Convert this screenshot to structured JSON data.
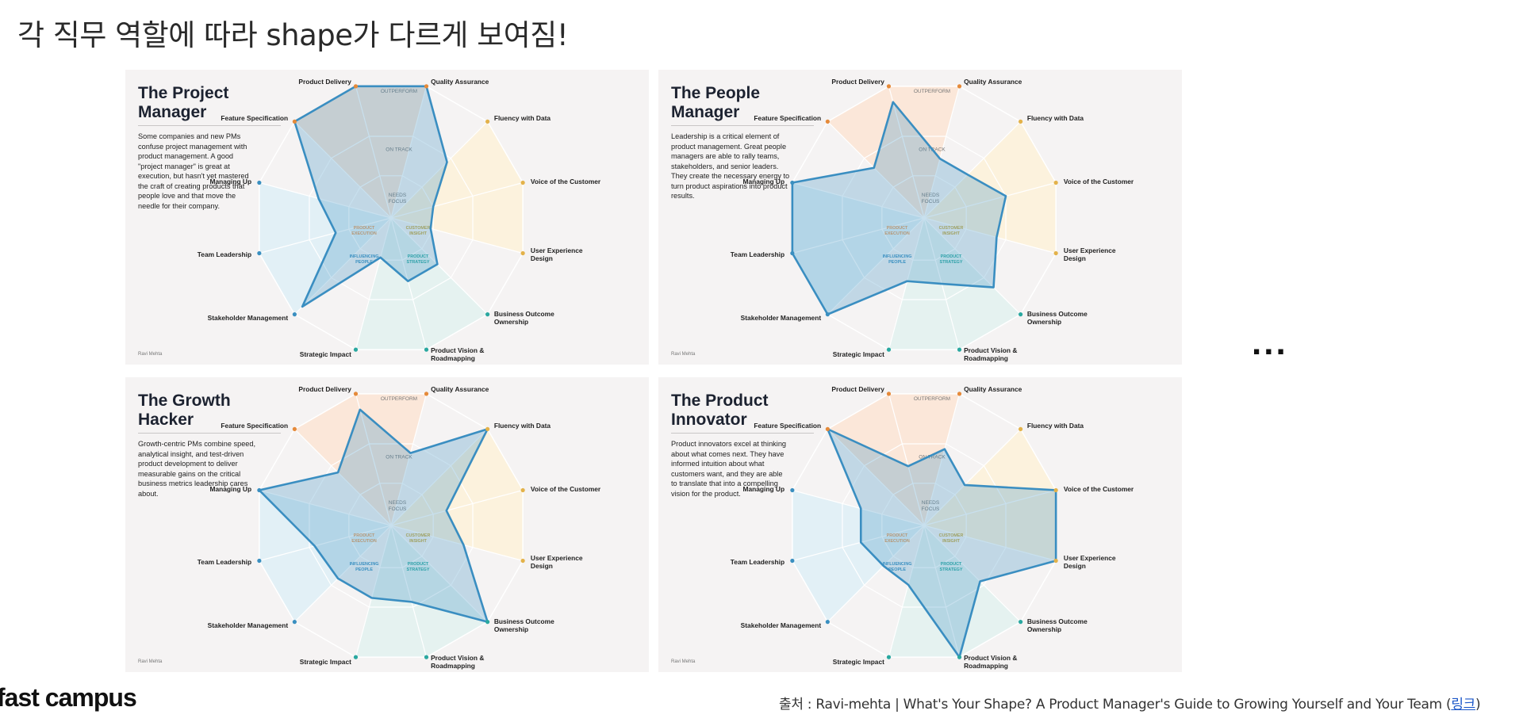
{
  "heading": "각 직무 역할에 따라 shape가 다르게 보여짐!",
  "ring_labels": [
    "OUTPERFORM",
    "ON TRACK",
    "NEEDS",
    "FOCUS"
  ],
  "zone_labels": [
    "PRODUCT",
    "EXECUTION",
    "CUSTOMER",
    "INSIGHT",
    "INFLUENCING",
    "PEOPLE",
    "PRODUCT",
    "STRATEGY"
  ],
  "zone_colors": {
    "execution": "#e59a5a",
    "insight": "#c8a83c",
    "people": "#3a8fc0",
    "strategy": "#2aa8a0"
  },
  "shape_color": "#3a8ec1",
  "axes": [
    "Quality Assurance",
    "Fluency with Data",
    "Voice of the Customer",
    "User Experience Design",
    "Business Outcome Ownership",
    "Product Vision & Roadmapping",
    "Strategic Impact",
    "Stakeholder Management",
    "Team Leadership",
    "Managing Up",
    "Feature Specification",
    "Product Delivery"
  ],
  "panels": [
    {
      "title": "The Project Manager",
      "description": "Some companies and new PMs confuse project management with product management. A good \"project manager\" is great at execution, but hasn't yet mastered the craft of creating products that people love and that move the needle for their company.",
      "footer": "Ravi Mehta",
      "levels": [
        1.0,
        0.58,
        0.32,
        0.3,
        0.48,
        0.48,
        0.3,
        0.92,
        0.42,
        0.55,
        1.0,
        1.0
      ]
    },
    {
      "title": "The People Manager",
      "description": "Leadership is a critical element of product management. Great people managers are able to rally teams, stakeholders, and senior leaders. They create the necessary energy to turn product aspirations into product results.",
      "footer": "Ravi Mehta",
      "levels": [
        0.45,
        0.45,
        0.62,
        0.55,
        0.72,
        0.5,
        0.48,
        1.0,
        1.0,
        1.0,
        0.52,
        0.88
      ]
    },
    {
      "title": "The Growth Hacker",
      "description": "Growth-centric PMs combine speed, analytical insight, and test-driven product development to deliver measurable gains on the critical business metrics leadership cares about.",
      "footer": "Ravi Mehta",
      "levels": [
        0.55,
        1.0,
        0.42,
        0.55,
        1.0,
        0.58,
        0.55,
        0.55,
        0.58,
        1.0,
        0.55,
        0.88
      ]
    },
    {
      "title": "The Product Innovator",
      "description": "Product innovators excel at thinking about what comes next. They have informed intuition about what customers want, and they are able to translate that into a compelling vision for the product.",
      "footer": "Ravi Mehta",
      "levels": [
        0.58,
        0.42,
        1.0,
        1.0,
        0.58,
        1.0,
        0.45,
        0.42,
        0.48,
        0.48,
        1.0,
        0.45
      ]
    }
  ],
  "ellipsis": "...",
  "logo": "fast campus",
  "source_prefix": "출처 : Ravi-mehta | What's Your Shape? A Product Manager's Guide to Growing Yourself and Your Team (",
  "source_link": "링크",
  "source_suffix": ")"
}
